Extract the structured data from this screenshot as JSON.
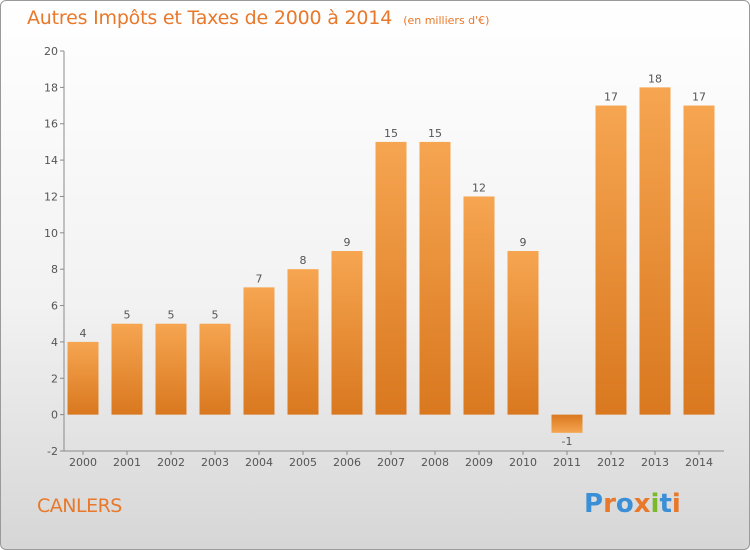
{
  "title": "Autres Impôts et Taxes de 2000 à 2014",
  "unit": "(en milliers d'€)",
  "place": "CANLERS",
  "logo": {
    "text": "Proxiti",
    "colors": [
      "#3a8fd6",
      "#e8782a",
      "#3a8fd6",
      "#e8782a",
      "#7ab929",
      "#3a8fd6",
      "#e8782a"
    ]
  },
  "colors": {
    "bar_light": "#f6a551",
    "bar_dark": "#d9781f",
    "text": "#e8782a",
    "axis": "#555555"
  },
  "chart_data": {
    "type": "bar",
    "categories": [
      "2000",
      "2001",
      "2002",
      "2003",
      "2004",
      "2005",
      "2006",
      "2007",
      "2008",
      "2009",
      "2010",
      "2011",
      "2012",
      "2013",
      "2014"
    ],
    "values": [
      4,
      5,
      5,
      5,
      7,
      8,
      9,
      15,
      15,
      12,
      9,
      -1,
      17,
      18,
      17
    ],
    "labels": [
      "4",
      "5",
      "5",
      "5",
      "7",
      "8",
      "9",
      "15",
      "15",
      "12",
      "9",
      "-1",
      "17",
      "18",
      "17"
    ],
    "title": "Autres Impôts et Taxes de 2000 à 2014",
    "ylim": [
      -2,
      20
    ],
    "yticks": [
      -2,
      0,
      2,
      4,
      6,
      8,
      10,
      12,
      14,
      16,
      18,
      20
    ],
    "grid": false
  }
}
